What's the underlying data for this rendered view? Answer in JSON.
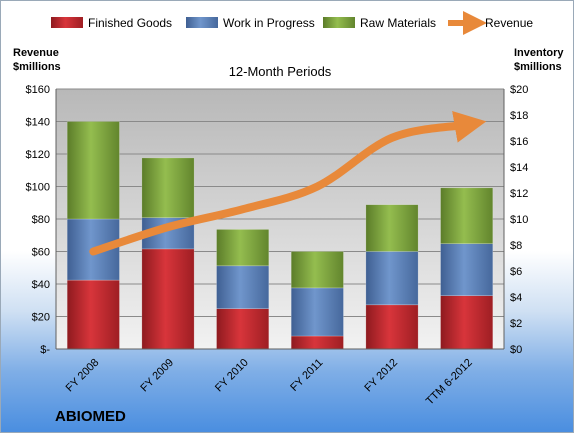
{
  "company": "ABIOMED",
  "chart_data": {
    "type": "bar",
    "stacked": true,
    "title": "12-Month Periods",
    "y_left_label": [
      "Revenue",
      "$millions"
    ],
    "y_right_label": [
      "Inventory",
      "$millions"
    ],
    "categories": [
      "FY 2008",
      "FY 2009",
      "FY 2010",
      "FY 2011",
      "FY 2012",
      "TTM 6-2012"
    ],
    "y_left_ticks": [
      "$-",
      "$20",
      "$40",
      "$60",
      "$80",
      "$100",
      "$120",
      "$140",
      "$160"
    ],
    "y_left_range": [
      0,
      160
    ],
    "y_right_ticks": [
      "$0",
      "$2",
      "$4",
      "$6",
      "$8",
      "$10",
      "$12",
      "$14",
      "$16",
      "$18",
      "$20"
    ],
    "y_right_range": [
      0,
      20
    ],
    "series": [
      {
        "name": "Finished Goods",
        "axis": "right",
        "type": "bar",
        "color": "#c0272d",
        "values": [
          5.3,
          7.7,
          3.1,
          1.0,
          3.4,
          4.1
        ]
      },
      {
        "name": "Work in Progress",
        "axis": "right",
        "type": "bar",
        "color": "#5a80b8",
        "values": [
          4.7,
          2.4,
          3.3,
          3.7,
          4.1,
          4.0
        ]
      },
      {
        "name": "Raw Materials",
        "axis": "right",
        "type": "bar",
        "color": "#7aa13a",
        "values": [
          7.5,
          4.6,
          2.8,
          2.8,
          3.6,
          4.3
        ]
      },
      {
        "name": "Revenue",
        "axis": "left",
        "type": "line",
        "color": "#e8893a",
        "values": [
          60,
          75,
          86,
          100,
          130,
          138
        ]
      }
    ],
    "legend": "top",
    "grid": true
  }
}
